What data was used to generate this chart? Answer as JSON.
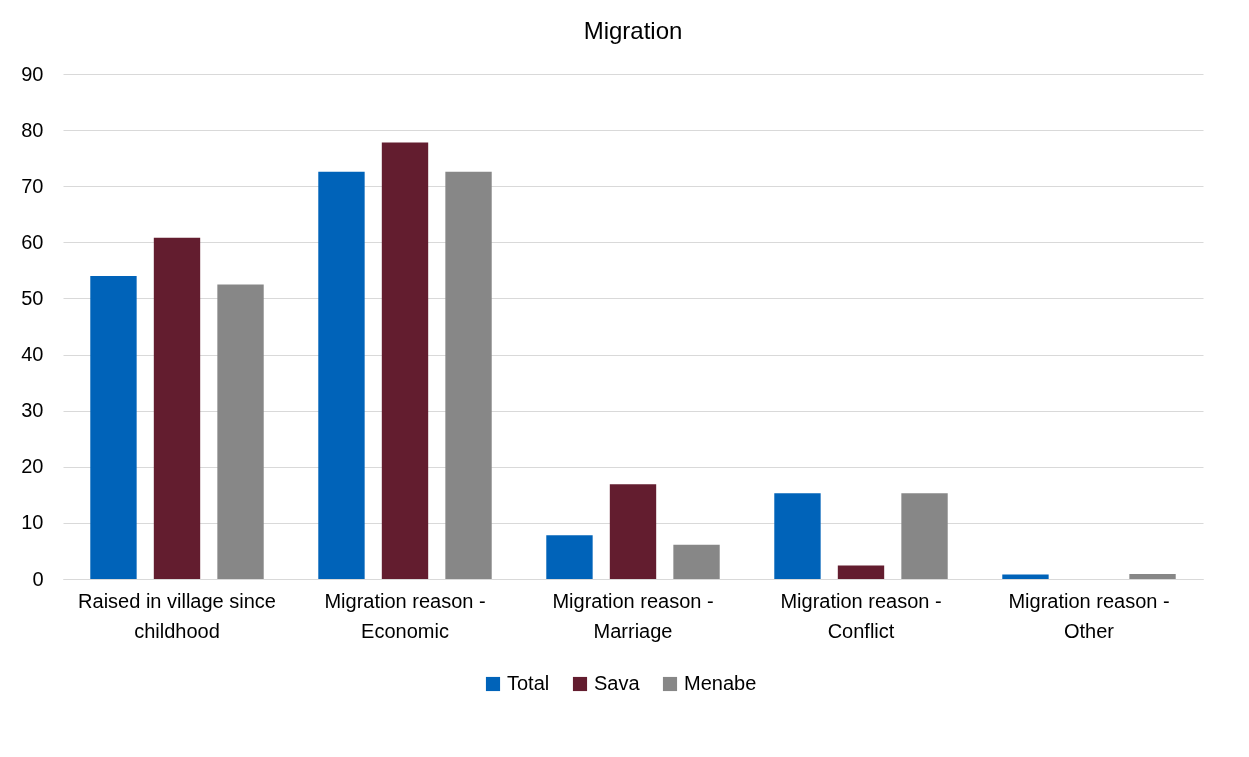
{
  "chart_data": {
    "type": "bar",
    "title": "Migration",
    "categories": [
      "Raised in village since childhood",
      "Migration reason - Economic",
      "Migration reason - Marriage",
      "Migration reason - Conflict",
      "Migration reason - Other"
    ],
    "series": [
      {
        "name": "Total",
        "color": "#0063b9",
        "values": [
          54.0,
          72.6,
          7.8,
          15.3,
          0.8
        ]
      },
      {
        "name": "Sava",
        "color": "#631d2f",
        "values": [
          60.8,
          77.8,
          16.9,
          2.4,
          0
        ]
      },
      {
        "name": "Menabe",
        "color": "#878787",
        "values": [
          52.5,
          72.6,
          6.1,
          15.3,
          0.9
        ]
      }
    ],
    "ylim": [
      0,
      90
    ],
    "yticks": [
      0,
      10,
      20,
      30,
      40,
      50,
      60,
      70,
      80,
      90
    ],
    "grid": "y",
    "legend": "bottom"
  }
}
